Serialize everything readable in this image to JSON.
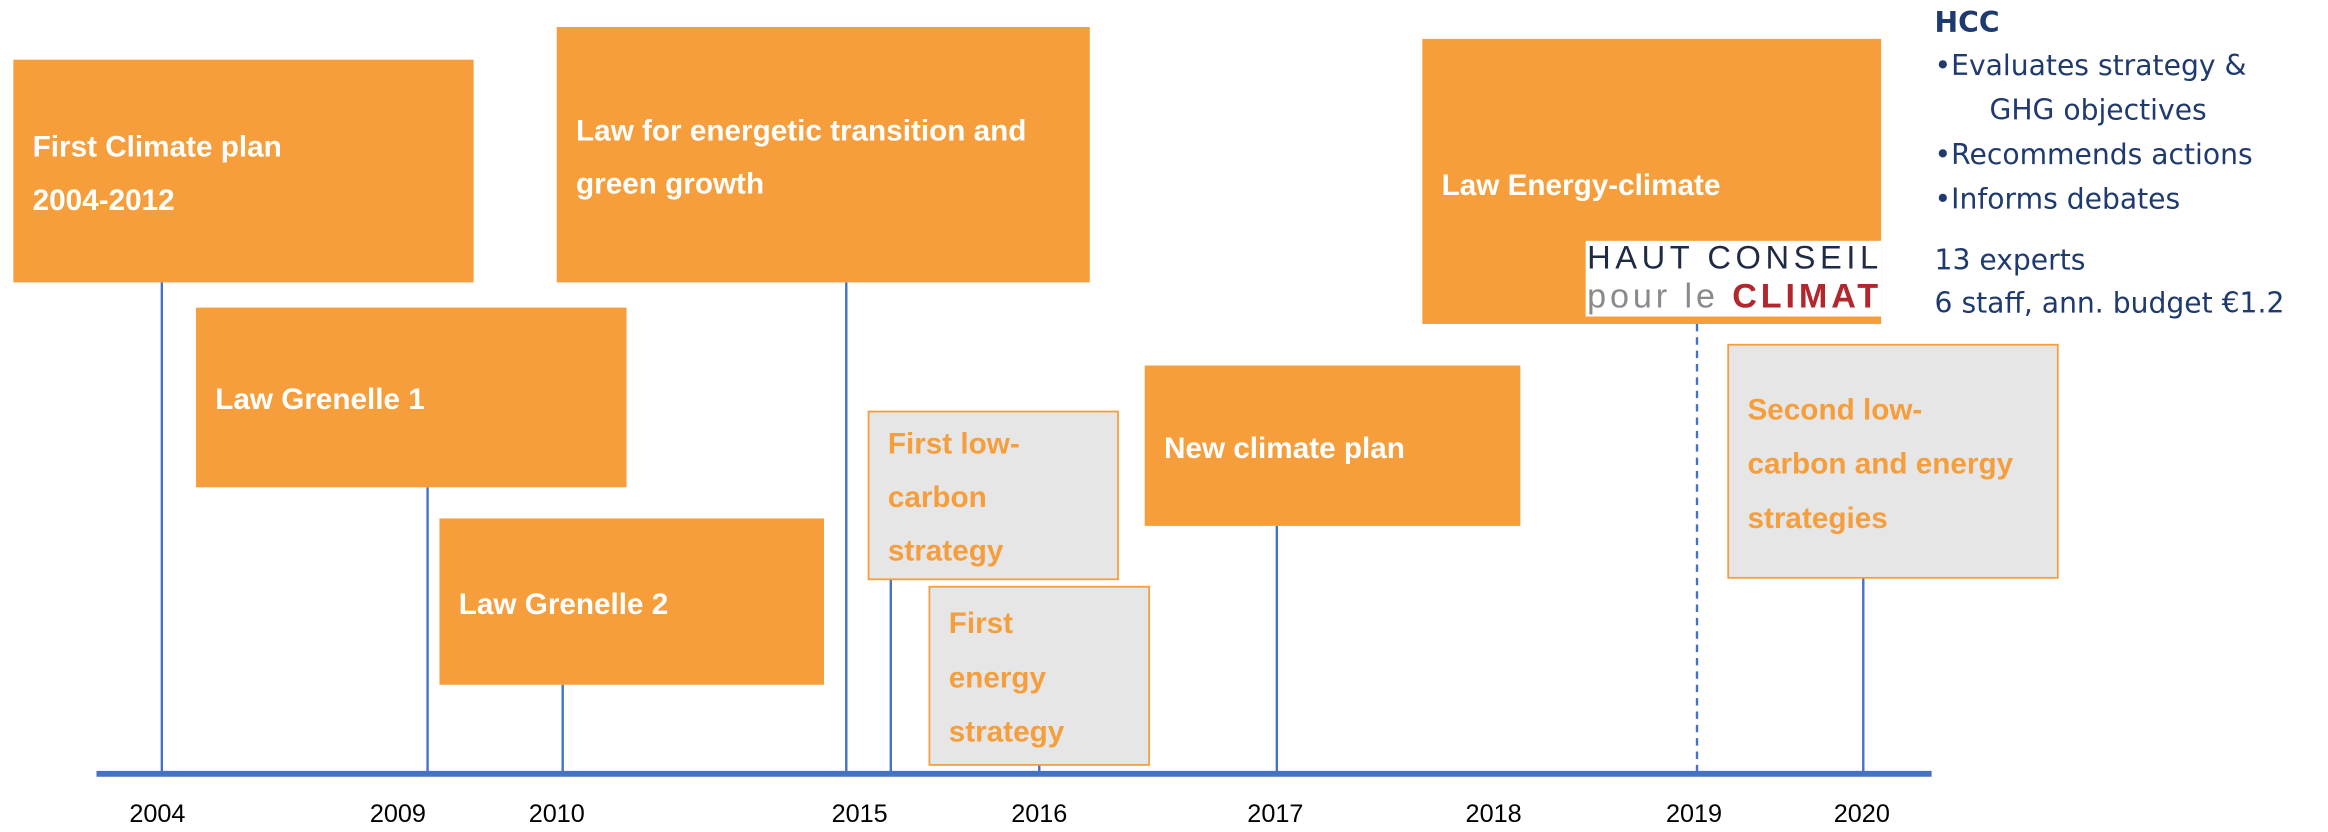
{
  "years": [
    "2004",
    "2009",
    "2010",
    "2015",
    "2016",
    "2017",
    "2018",
    "2019",
    "2020"
  ],
  "events": [
    {
      "lines": [
        "First Climate plan",
        "2004-2012"
      ]
    },
    {
      "lines": [
        "Law Grenelle 1"
      ]
    },
    {
      "lines": [
        "Law Grenelle 2"
      ]
    },
    {
      "lines": [
        "Law for energetic transition and",
        "green growth"
      ]
    },
    {
      "lines": [
        "First low-",
        "carbon",
        "strategy"
      ]
    },
    {
      "lines": [
        "First",
        "energy",
        "strategy"
      ]
    },
    {
      "lines": [
        "New climate plan"
      ]
    },
    {
      "lines": [
        "Law Energy-climate"
      ]
    },
    {
      "lines": [
        "Second low-",
        "carbon and energy",
        "strategies"
      ]
    }
  ],
  "logo": {
    "top": "HAUT CONSEIL",
    "bottom_start": "pour le ",
    "bottom_end": "CLIMAT"
  },
  "hcc": {
    "title": "HCC",
    "lines": [
      "•Evaluates strategy &",
      "GHG objectives",
      "•Recommends actions",
      "•Informs debates"
    ],
    "notes": [
      "13 experts",
      "6 staff, ann. budget €1.2"
    ]
  }
}
